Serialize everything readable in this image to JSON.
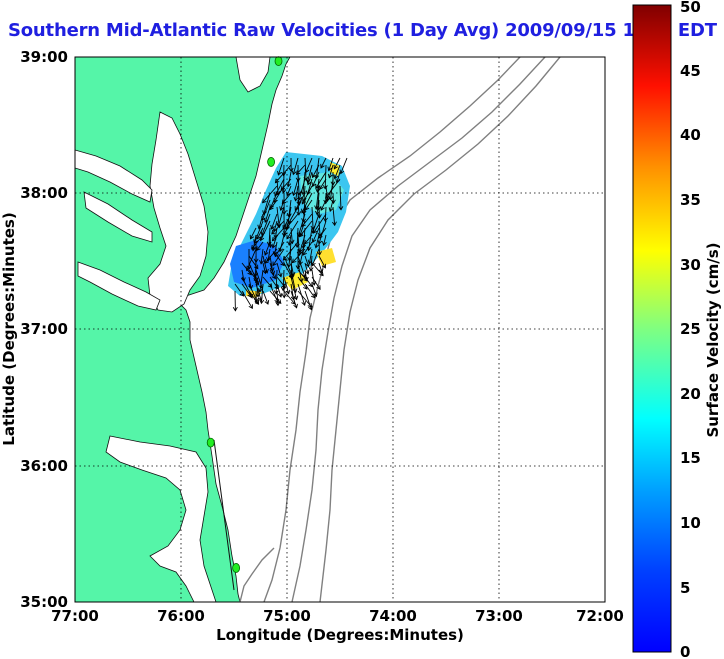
{
  "title": "Southern Mid-Atlantic Raw Velocities (1 Day Avg) 2009/09/15 1200 EDT",
  "map": {
    "xlabel": "Longitude (Degrees:Minutes)",
    "ylabel": "Latitude (Degrees:Minutes)",
    "x_ticks": [
      "77:00",
      "76:00",
      "75:00",
      "74:00",
      "73:00",
      "72:00"
    ],
    "y_ticks": [
      "39:00",
      "38:00",
      "37:00",
      "36:00",
      "35:00"
    ],
    "lon_range": [
      -77,
      -72
    ],
    "lat_range": [
      35,
      39
    ],
    "land_color": "#55f5a8",
    "grid": "dotted",
    "stations": [
      {
        "lon": -75.08,
        "lat": 38.97
      },
      {
        "lon": -75.15,
        "lat": 38.23
      },
      {
        "lon": -75.72,
        "lat": 36.17
      },
      {
        "lon": -75.48,
        "lat": 35.25
      }
    ]
  },
  "colorbar": {
    "label": "Surface Velocity (cm/s)",
    "ticks": [
      "0",
      "5",
      "10",
      "15",
      "20",
      "25",
      "30",
      "35",
      "40",
      "45",
      "50"
    ],
    "range": [
      0,
      50
    ],
    "colormap": "jet"
  }
}
